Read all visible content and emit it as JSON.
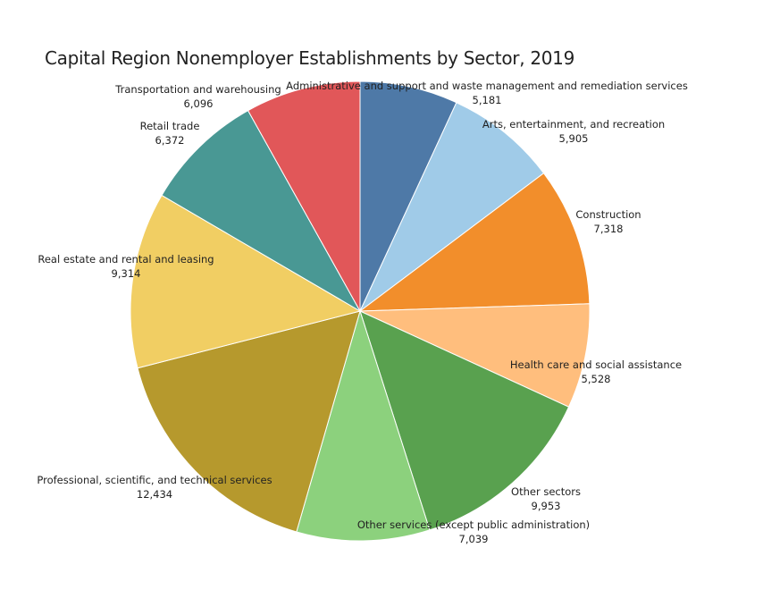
{
  "chart_data": {
    "type": "pie",
    "title": "Capital Region Nonemployer Establishments by Sector, 2019",
    "slices": [
      {
        "name": "Administrative and support and waste management and remediation services",
        "value": 5181,
        "value_label": "5,181",
        "color": "#4e79a7"
      },
      {
        "name": "Arts, entertainment, and recreation",
        "value": 5905,
        "value_label": "5,905",
        "color": "#a0cbe8"
      },
      {
        "name": "Construction",
        "value": 7318,
        "value_label": "7,318",
        "color": "#f28e2b"
      },
      {
        "name": "Health care and social assistance",
        "value": 5528,
        "value_label": "5,528",
        "color": "#ffbe7d"
      },
      {
        "name": "Other sectors",
        "value": 9953,
        "value_label": "9,953",
        "color": "#59a14f"
      },
      {
        "name": "Other services (except public administration)",
        "value": 7039,
        "value_label": "7,039",
        "color": "#8cd17d"
      },
      {
        "name": "Professional, scientific, and technical services",
        "value": 12434,
        "value_label": "12,434",
        "color": "#b6992d"
      },
      {
        "name": "Real estate and rental and leasing",
        "value": 9314,
        "value_label": "9,314",
        "color": "#f1ce63"
      },
      {
        "name": "Retail trade",
        "value": 6372,
        "value_label": "6,372",
        "color": "#499894"
      },
      {
        "name": "Transportation and warehousing",
        "value": 6096,
        "value_label": "6,096",
        "color": "#e15759"
      }
    ]
  }
}
